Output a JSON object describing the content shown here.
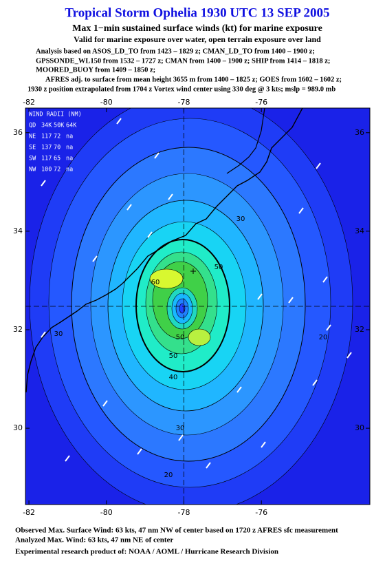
{
  "header": {
    "title": "Tropical Storm Ophelia 1930 UTC 13 SEP 2005",
    "subtitle": "Max 1−min sustained surface winds (kt) for marine exposure",
    "validity": "Valid for marine exposure over water, open terrain exposure over land",
    "analysis_lines": [
      "Analysis based on  ASOS_LD_TO from 1423 – 1829 z;  CMAN_LD_TO from 1400 – 1900 z;",
      "GPSSONDE_WL150 from 1532 – 1727 z;  CMAN from 1400 – 1900 z;  SHIP from 1414 – 1818 z;",
      "MOORED_BUOY from 1409 – 1850 z;",
      "AFRES adj. to surface from mean height 3655 m from 1400 – 1825 z;  GOES from 1602 – 1602 z;",
      "1930 z position extrapolated from 1704 z Vortex wind center using 330 deg @ 3 kts; mslp = 989.0 mb"
    ]
  },
  "map": {
    "xlim": [
      -82.09,
      -73.2
    ],
    "ylim": [
      28.45,
      36.5
    ],
    "xticks": [
      -82,
      -80,
      -78,
      -76
    ],
    "yticks": [
      30,
      32,
      34,
      36
    ],
    "wind_radii": {
      "title": "WIND RADII (NM)",
      "header": [
        "QD",
        "34K",
        "50K",
        "64K"
      ],
      "rows": [
        [
          "NE",
          "117",
          "72",
          "na"
        ],
        [
          "SE",
          "137",
          "70",
          "na"
        ],
        [
          "SW",
          "117",
          "65",
          "na"
        ],
        [
          "NW",
          "100",
          "72",
          "na"
        ]
      ]
    },
    "contour_labels": [
      "30",
      "50",
      "60",
      "50",
      "50",
      "40",
      "30",
      "20",
      "20",
      "30"
    ]
  },
  "footer": {
    "lines": [
      "Observed Max. Surface Wind: 63 kts, 47 nm NW of center based on 1720 z AFRES sfc measurement",
      "Analyzed Max. Wind: 63 kts, 47 nm NE of center"
    ],
    "credit": "Experimental research product of:  NOAA / AOML / Hurricane Research Division"
  }
}
